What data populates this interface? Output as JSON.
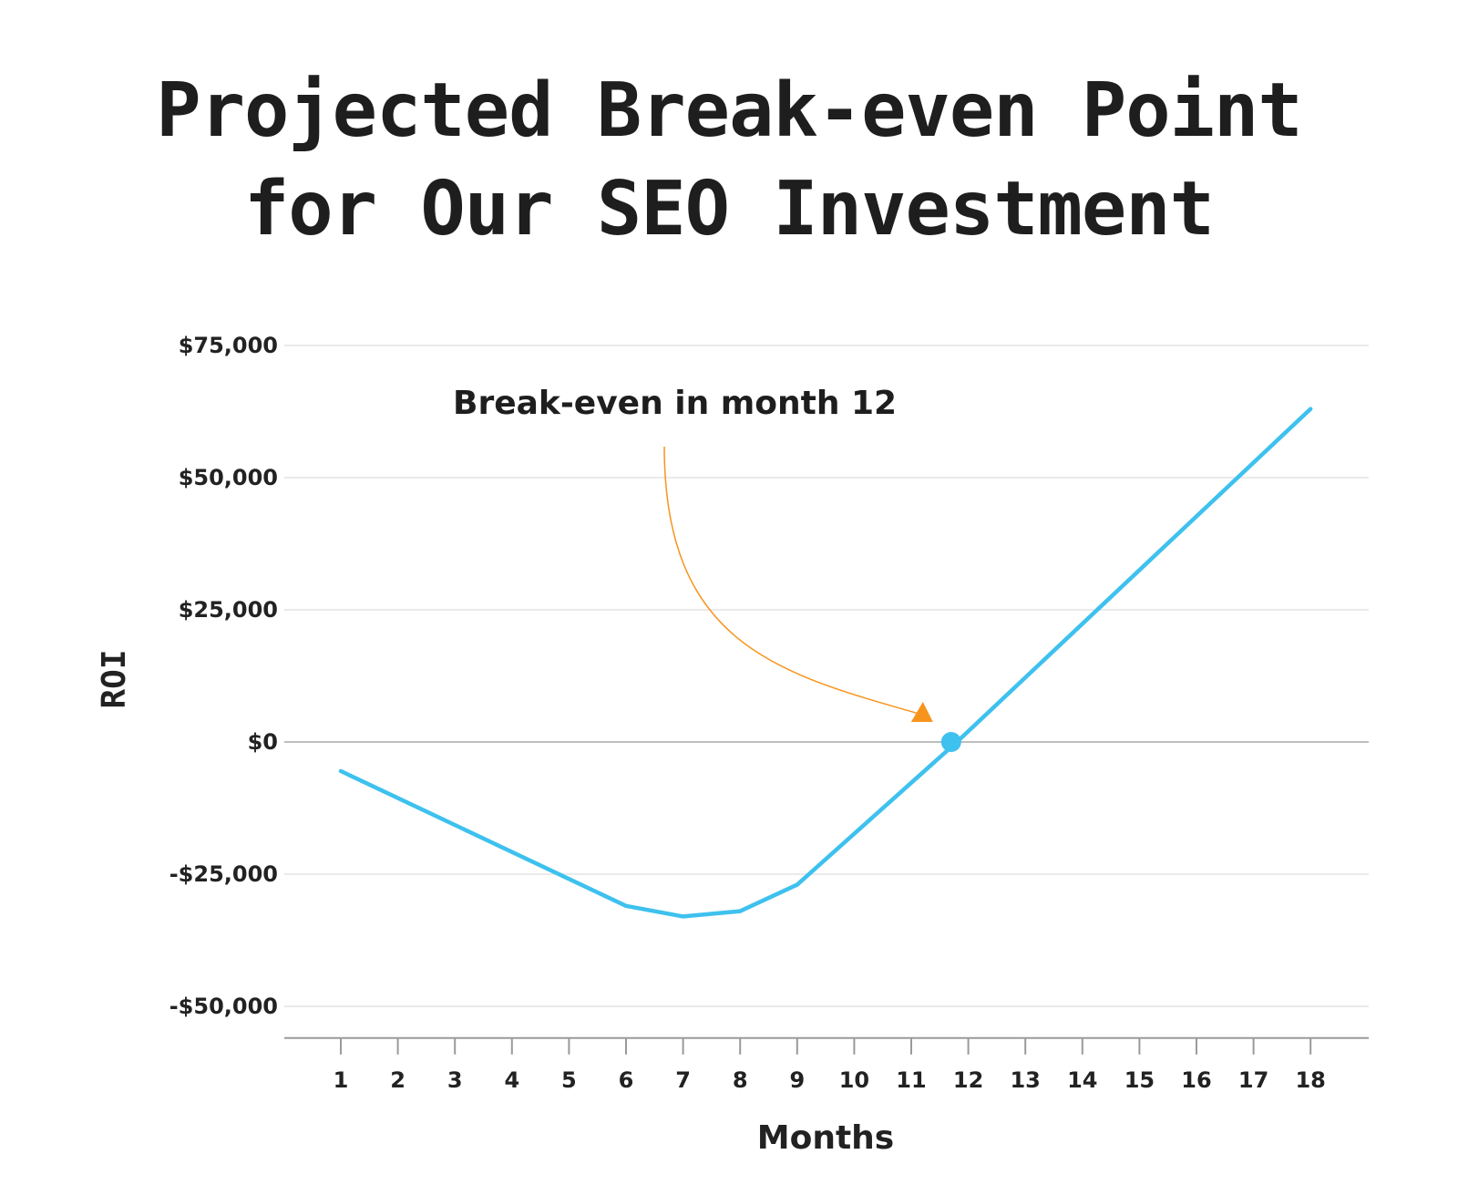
{
  "title_lines": [
    "Projected Break-even Point",
    "for Our SEO Investment"
  ],
  "colors": {
    "line": "#3ec1ee",
    "annotation": "#f7941d",
    "grid": "#e4e4e4",
    "zero": "#bdbdbd",
    "text": "#1e1e1e"
  },
  "chart_data": {
    "type": "line",
    "title": "Projected Break-even Point for Our SEO Investment",
    "xlabel": "Months",
    "ylabel": "ROI",
    "x": [
      1,
      2,
      3,
      4,
      5,
      6,
      7,
      8,
      9,
      10,
      11,
      12,
      13,
      14,
      15,
      16,
      17,
      18
    ],
    "x_tick_labels": [
      "1",
      "2",
      "3",
      "4",
      "5",
      "6",
      "7",
      "8",
      "9",
      "10",
      "11",
      "12",
      "13",
      "14",
      "15",
      "16",
      "17",
      "18"
    ],
    "y_tick_values": [
      75000,
      50000,
      25000,
      0,
      -25000,
      -50000
    ],
    "y_tick_labels": [
      "$75,000",
      "$50,000",
      "$25,000",
      "$0",
      "-$25,000",
      "-$50,000"
    ],
    "ylim": [
      -56000,
      75000
    ],
    "xlim": [
      0,
      20
    ],
    "grid": "horizontal",
    "series": [
      {
        "x": [
          1,
          6,
          7,
          8,
          9,
          11.8,
          18
        ],
        "values": [
          -5500,
          -31000,
          -33000,
          -32000,
          -27000,
          0,
          63000
        ]
      }
    ],
    "annotation": {
      "text": "Break-even in month 12",
      "x": 11.7,
      "y": 0
    }
  }
}
